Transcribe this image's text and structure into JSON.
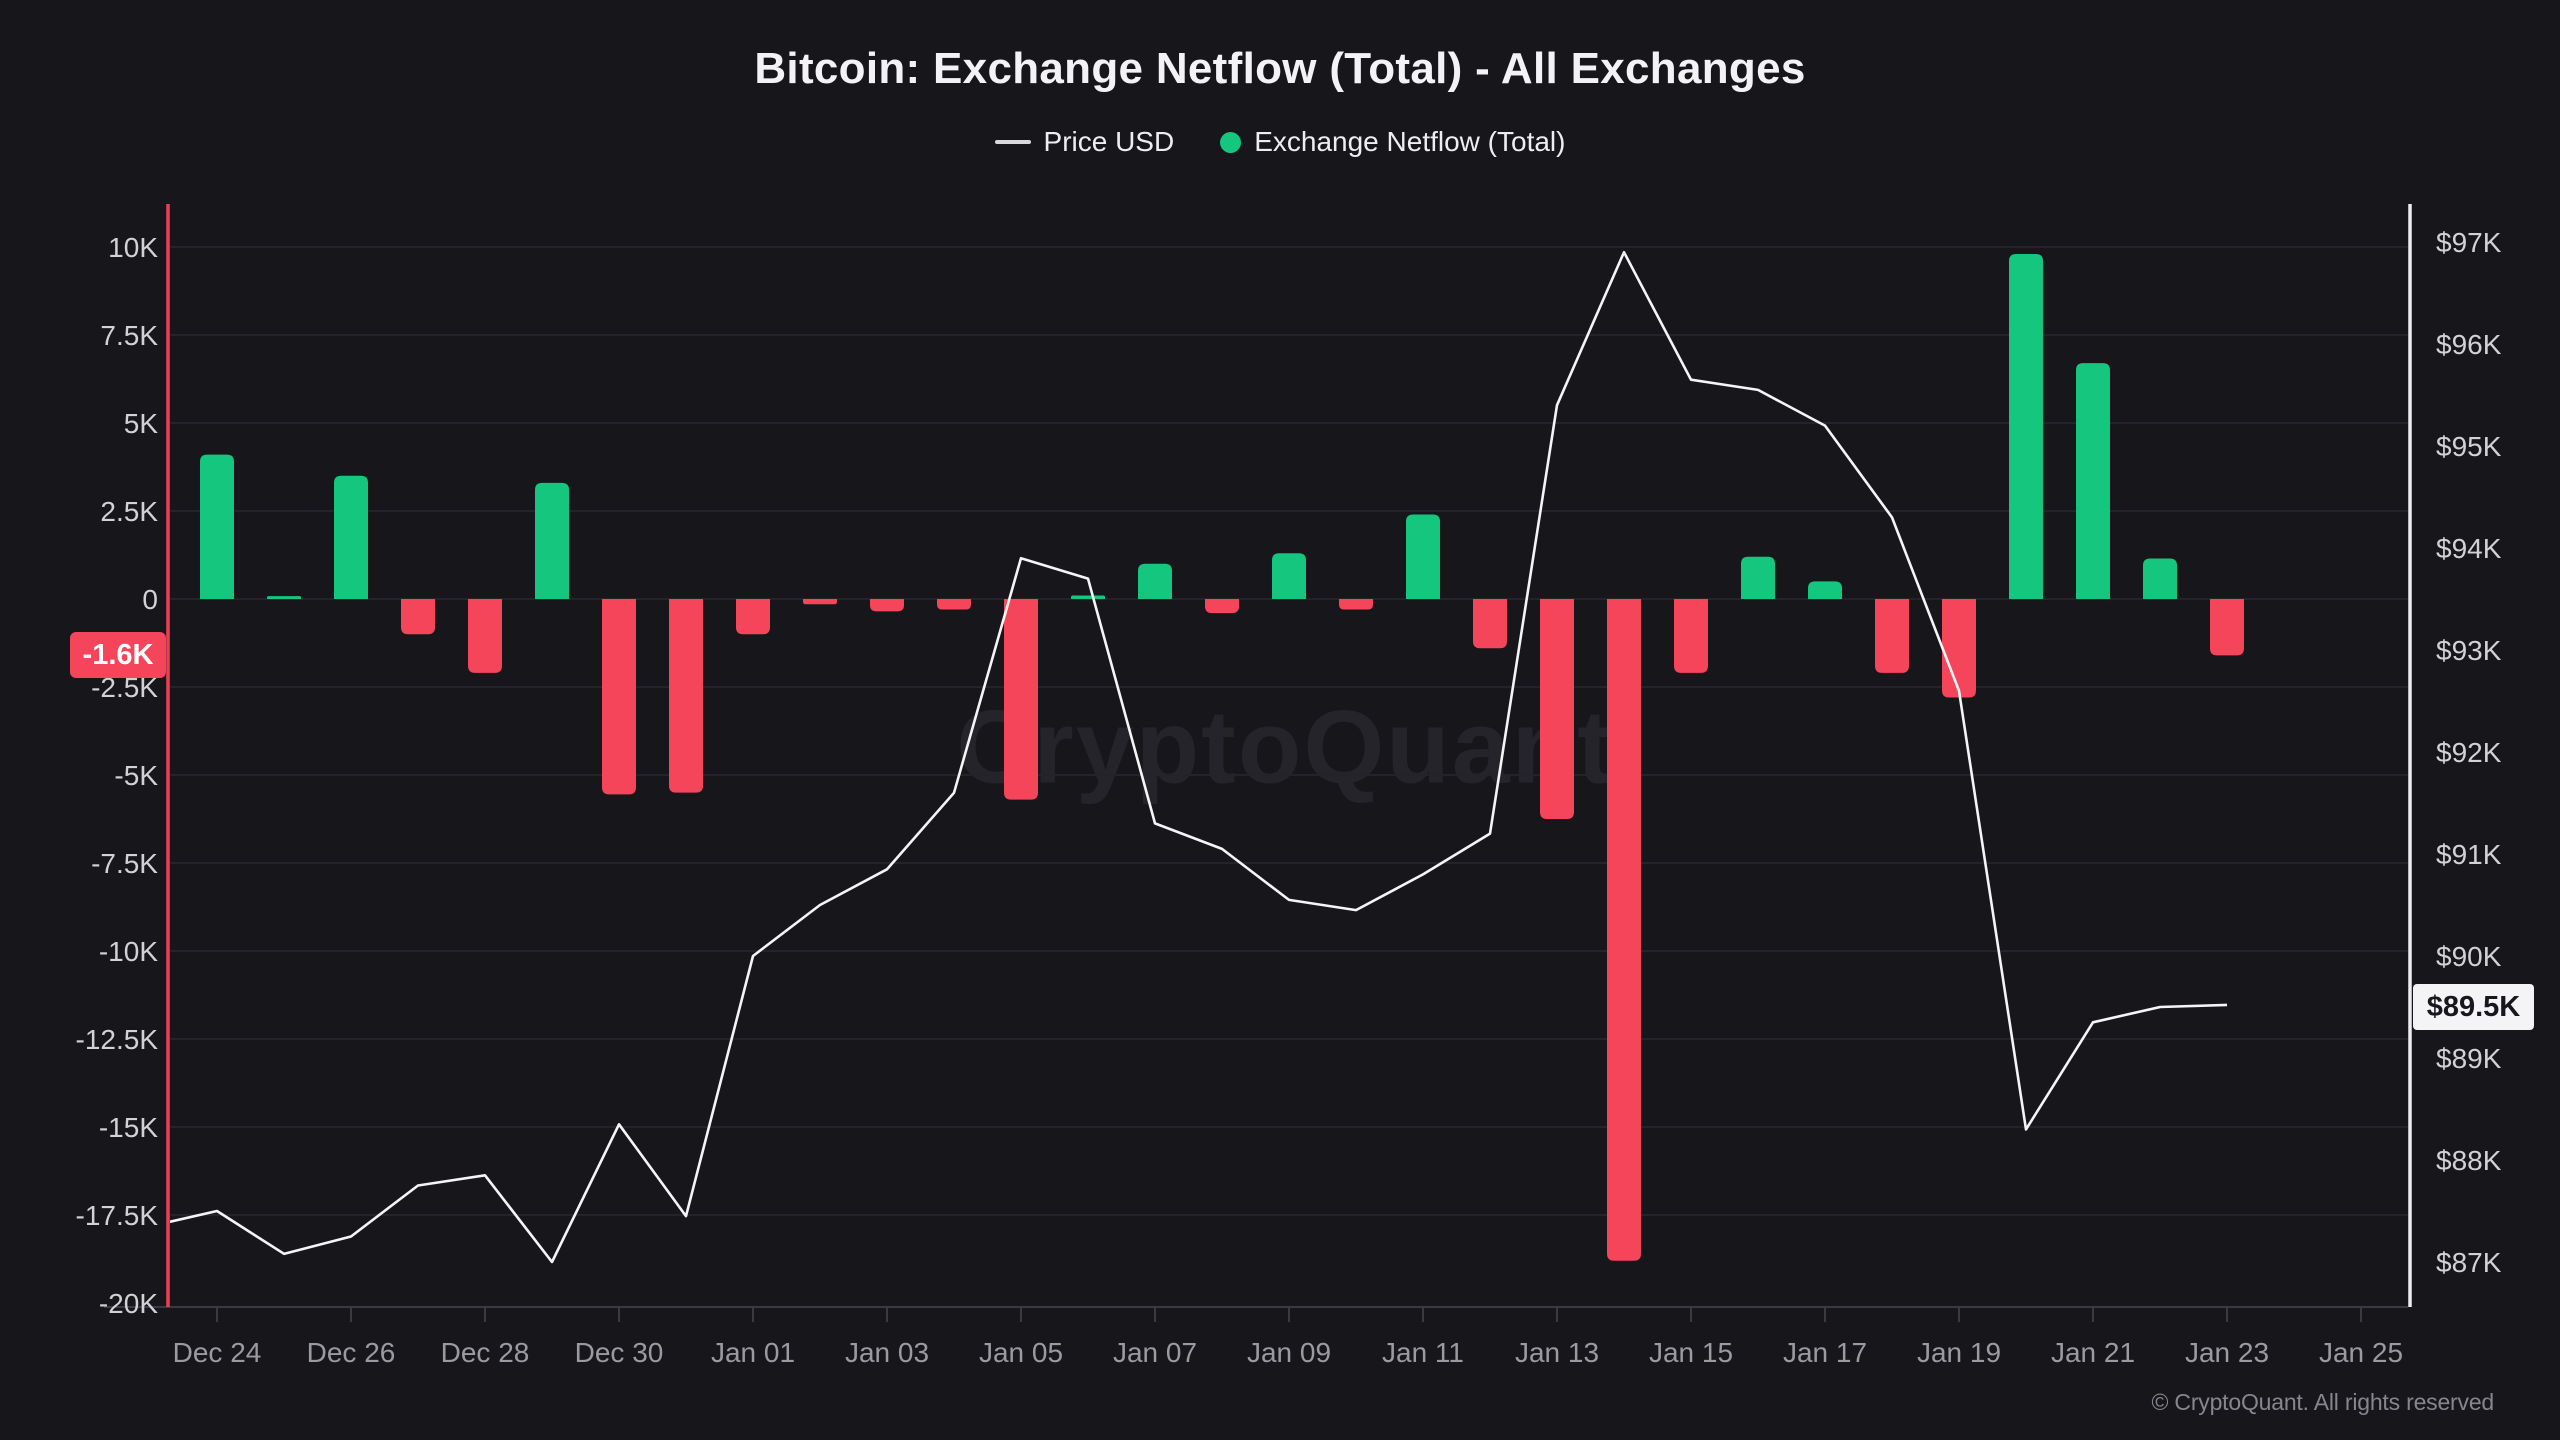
{
  "header": {
    "title": "Bitcoin: Exchange Netflow (Total) - All Exchanges",
    "legend": [
      {
        "label": "Price USD",
        "marker": "line"
      },
      {
        "label": "Exchange Netflow (Total)",
        "marker": "dot"
      }
    ]
  },
  "watermark": "CryptoQuant",
  "footer": "© CryptoQuant. All rights reserved",
  "annotations": {
    "netflow_label": "-1.6K",
    "netflow_value": -1600,
    "price_label": "$89.5K",
    "price_value": 89500
  },
  "colors": {
    "background": "#16161b",
    "green": "#15c67e",
    "red": "#f4455a",
    "price_line": "#f5f5f7",
    "grid": "#232329",
    "baseline": "#3a3a41",
    "axis_red": "#ee3e55",
    "axis_white": "#eeeef0",
    "tick_text": "#d2d2d6",
    "x_text": "#9a9aa1"
  },
  "chart_data": {
    "type": "bar+line combo",
    "title": "Bitcoin: Exchange Netflow (Total) - All Exchanges",
    "categories": [
      "Dec 24",
      "Dec 25",
      "Dec 26",
      "Dec 27",
      "Dec 28",
      "Dec 29",
      "Dec 30",
      "Dec 31",
      "Jan 01",
      "Jan 02",
      "Jan 03",
      "Jan 04",
      "Jan 05",
      "Jan 06",
      "Jan 07",
      "Jan 08",
      "Jan 09",
      "Jan 10",
      "Jan 11",
      "Jan 12",
      "Jan 13",
      "Jan 14",
      "Jan 15",
      "Jan 16",
      "Jan 17",
      "Jan 18",
      "Jan 19",
      "Jan 20",
      "Jan 21",
      "Jan 22",
      "Jan 23"
    ],
    "series": [
      {
        "name": "Exchange Netflow (Total)",
        "type": "bar",
        "axis": "left",
        "values": [
          4100,
          80,
          3500,
          -1000,
          -2100,
          3300,
          -5550,
          -5500,
          -1000,
          -150,
          -350,
          -300,
          -5700,
          100,
          1000,
          -400,
          1300,
          -300,
          2400,
          -1400,
          -6250,
          -18800,
          -2100,
          1200,
          500,
          -2100,
          -2800,
          9800,
          6700,
          1150,
          -1600
        ]
      },
      {
        "name": "Price USD",
        "type": "line",
        "axis": "right",
        "pre_point": {
          "label": "Dec 23",
          "value": 87350
        },
        "values": [
          87500,
          87080,
          87250,
          87750,
          87850,
          87000,
          88350,
          87450,
          90000,
          90500,
          90850,
          91600,
          93900,
          93700,
          91300,
          91050,
          90550,
          90450,
          90800,
          91200,
          95400,
          96900,
          95650,
          95550,
          95200,
          94300,
          92600,
          88300,
          89350,
          89500,
          89520
        ]
      }
    ],
    "left_axis": {
      "name": "Exchange Netflow (Total)",
      "range": [
        -20000,
        10000
      ],
      "grid": true,
      "ticks": [
        {
          "label": "10K",
          "value": 10000
        },
        {
          "label": "7.5K",
          "value": 7500
        },
        {
          "label": "5K",
          "value": 5000
        },
        {
          "label": "2.5K",
          "value": 2500
        },
        {
          "label": "0",
          "value": 0
        },
        {
          "label": "-2.5K",
          "value": -2500
        },
        {
          "label": "-5K",
          "value": -5000
        },
        {
          "label": "-7.5K",
          "value": -7500
        },
        {
          "label": "-10K",
          "value": -10000
        },
        {
          "label": "-12.5K",
          "value": -12500
        },
        {
          "label": "-15K",
          "value": -15000
        },
        {
          "label": "-17.5K",
          "value": -17500
        },
        {
          "label": "-20K",
          "value": -20000
        }
      ]
    },
    "right_axis": {
      "name": "Price USD",
      "range": [
        87000,
        97000
      ],
      "ticks": [
        {
          "label": "$97K",
          "value": 97000
        },
        {
          "label": "$96K",
          "value": 96000
        },
        {
          "label": "$95K",
          "value": 95000
        },
        {
          "label": "$94K",
          "value": 94000
        },
        {
          "label": "$93K",
          "value": 93000
        },
        {
          "label": "$92K",
          "value": 92000
        },
        {
          "label": "$91K",
          "value": 91000
        },
        {
          "label": "$90K",
          "value": 90000
        },
        {
          "label": "$89K",
          "value": 89000
        },
        {
          "label": "$88K",
          "value": 88000
        },
        {
          "label": "$87K",
          "value": 87000
        }
      ]
    },
    "x_ticks": [
      {
        "label": "Dec 24",
        "day": 0
      },
      {
        "label": "Dec 26",
        "day": 2
      },
      {
        "label": "Dec 28",
        "day": 4
      },
      {
        "label": "Dec 30",
        "day": 6
      },
      {
        "label": "Jan 01",
        "day": 8
      },
      {
        "label": "Jan 03",
        "day": 10
      },
      {
        "label": "Jan 05",
        "day": 12
      },
      {
        "label": "Jan 07",
        "day": 14
      },
      {
        "label": "Jan 09",
        "day": 16
      },
      {
        "label": "Jan 11",
        "day": 18
      },
      {
        "label": "Jan 13",
        "day": 20
      },
      {
        "label": "Jan 15",
        "day": 22
      },
      {
        "label": "Jan 17",
        "day": 24
      },
      {
        "label": "Jan 19",
        "day": 26
      },
      {
        "label": "Jan 21",
        "day": 28
      },
      {
        "label": "Jan 23",
        "day": 30
      },
      {
        "label": "Jan 25",
        "day": 32
      }
    ],
    "legend_position": "top",
    "latest": {
      "netflow": "-1.6K",
      "price": "$89.5K"
    }
  }
}
